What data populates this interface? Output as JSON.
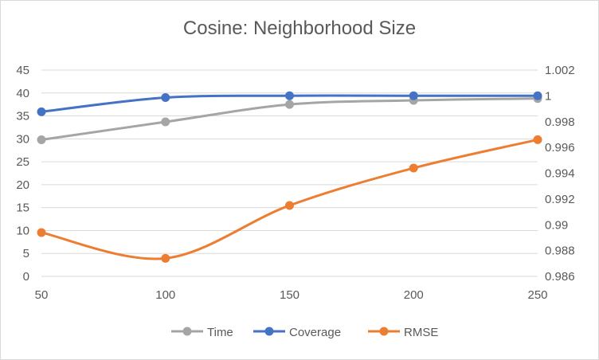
{
  "chart_data": {
    "type": "line",
    "title": "Cosine: Neighborhood Size",
    "x": [
      50,
      100,
      150,
      200,
      250
    ],
    "x_ticks": [
      "50",
      "100",
      "150",
      "200",
      "250"
    ],
    "y_left_ticks": [
      "0",
      "5",
      "10",
      "15",
      "20",
      "25",
      "30",
      "35",
      "40",
      "45"
    ],
    "y_right_ticks": [
      "0.986",
      "0.988",
      "0.99",
      "0.992",
      "0.994",
      "0.996",
      "0.998",
      "1",
      "1.002"
    ],
    "ylim_left": [
      0,
      45
    ],
    "ylim_right": [
      0.986,
      1.002
    ],
    "grid": true,
    "legend_position": "bottom",
    "series": [
      {
        "name": "Time",
        "axis": "left",
        "color": "#a5a5a5",
        "values": [
          29.8,
          33.7,
          37.5,
          38.4,
          38.8
        ]
      },
      {
        "name": "Coverage",
        "axis": "left",
        "color": "#4472c4",
        "values": [
          35.9,
          39.0,
          39.4,
          39.4,
          39.4
        ]
      },
      {
        "name": "RMSE",
        "axis": "right",
        "color": "#ed7d31",
        "values": [
          0.9894,
          0.9874,
          0.9915,
          0.9944,
          0.9966
        ]
      }
    ]
  }
}
